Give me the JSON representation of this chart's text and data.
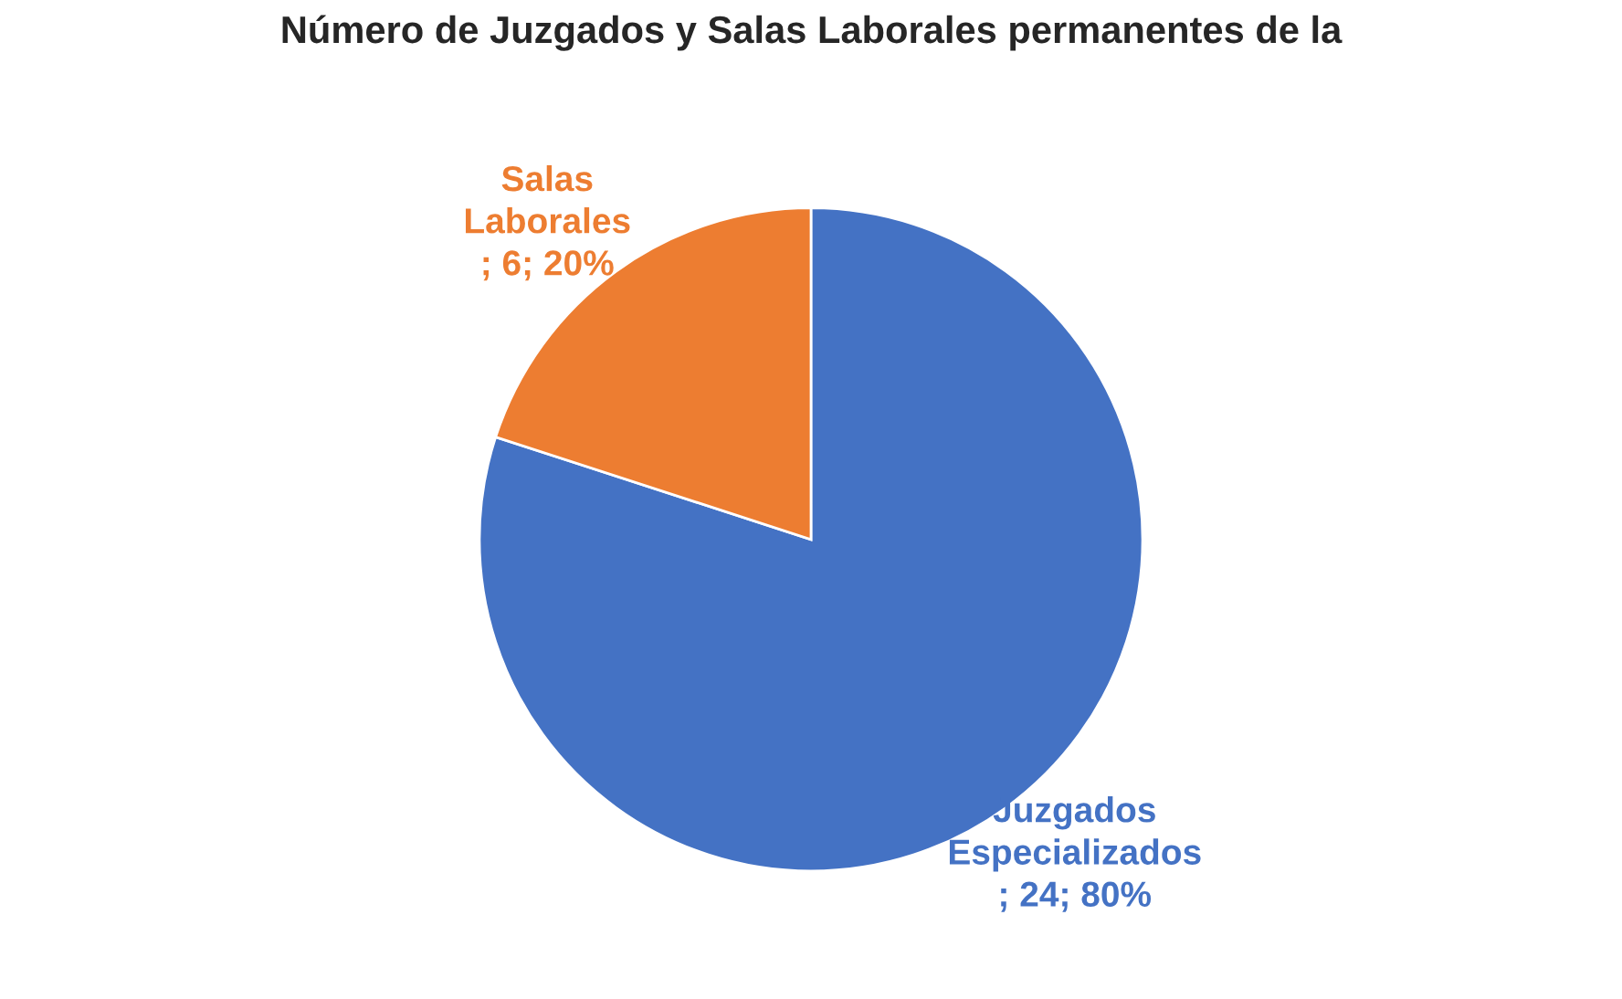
{
  "chart_data": {
    "type": "pie",
    "title": "Número de Juzgados y Salas Laborales permanentes de la",
    "categories": [
      "Juzgados Especializados",
      "Salas Laborales"
    ],
    "values": [
      24,
      6
    ],
    "value_labels": [
      "; 24; 80%",
      "; 6; 20%"
    ],
    "colors": [
      "#4472c4",
      "#ed7d31"
    ]
  }
}
